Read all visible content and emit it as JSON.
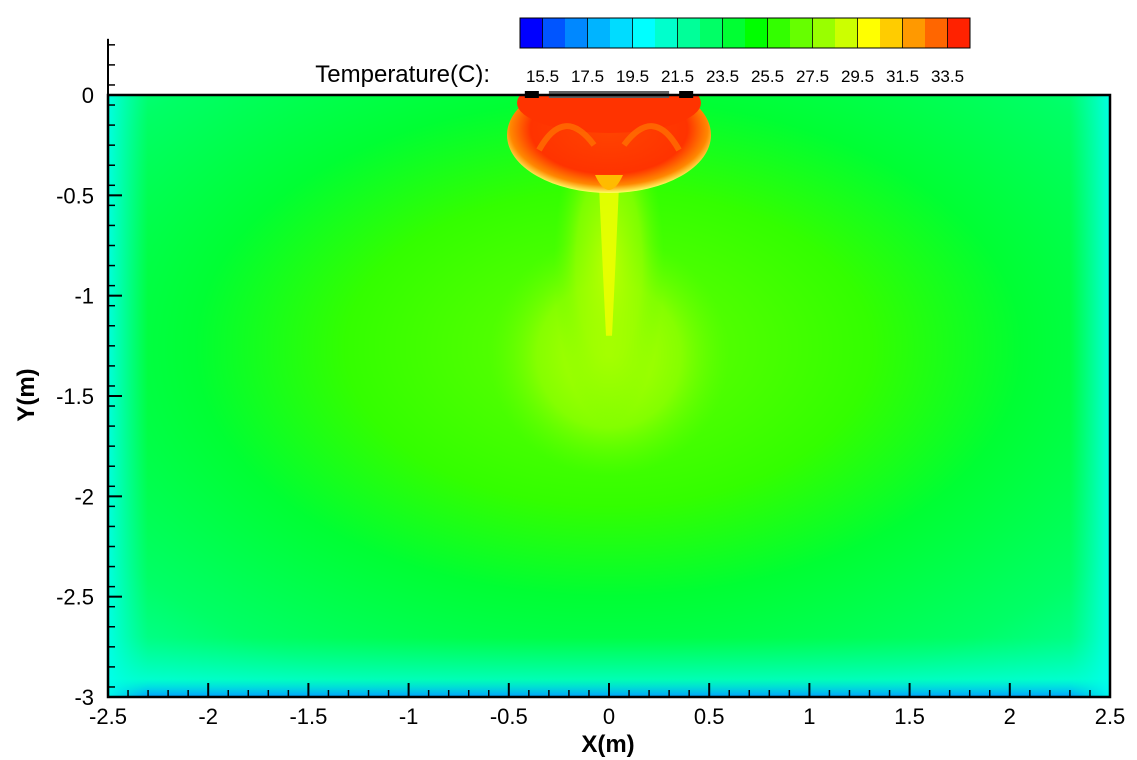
{
  "chart_data": {
    "type": "heatmap",
    "title": "",
    "xlabel": "X(m)",
    "ylabel": "Y(m)",
    "xlim": [
      -2.5,
      2.5
    ],
    "ylim": [
      -3,
      0
    ],
    "x_ticks": [
      -2.5,
      -2,
      -1.5,
      -1,
      -0.5,
      0,
      0.5,
      1,
      1.5,
      2,
      2.5
    ],
    "x_tick_labels": [
      "-2.5",
      "-2",
      "-1.5",
      "-1",
      "-0.5",
      "0",
      "0.5",
      "1",
      "1.5",
      "2",
      "2.5"
    ],
    "y_ticks": [
      0,
      -0.5,
      -1,
      -1.5,
      -2,
      -2.5,
      -3
    ],
    "y_tick_labels": [
      "0",
      "-0.5",
      "-1",
      "-1.5",
      "-2",
      "-2.5",
      "-3"
    ],
    "colorbar": {
      "label": "Temperature(C):",
      "min": 14.5,
      "max": 34.5,
      "levels": 20,
      "colors": [
        "#0000ff",
        "#0055ff",
        "#0088ff",
        "#00b4ff",
        "#00dcff",
        "#00ffff",
        "#00ffcc",
        "#00ff99",
        "#00ff66",
        "#00ff33",
        "#00ff00",
        "#33ff00",
        "#66ff00",
        "#99ff00",
        "#ccff00",
        "#ffff00",
        "#ffcc00",
        "#ff9900",
        "#ff6600",
        "#ff2200"
      ],
      "tick_values": [
        15.5,
        17.5,
        19.5,
        21.5,
        23.5,
        25.5,
        27.5,
        29.5,
        31.5,
        33.5
      ],
      "tick_labels": [
        "15.5",
        "17.5",
        "19.5",
        "21.5",
        "23.5",
        "25.5",
        "27.5",
        "29.5",
        "31.5",
        "33.5"
      ]
    },
    "field_description": {
      "background_temperature": 25.5,
      "hot_region_center": [
        0.0,
        -0.2
      ],
      "hot_region_temperature": 33.5,
      "plume_axis_x": 0.0,
      "boundary_temperature": 19.5
    },
    "surface_elements": [
      {
        "type": "heater",
        "x_start": -0.3,
        "x_end": 0.3,
        "y": 0.0,
        "color": "#606060"
      },
      {
        "type": "marker",
        "x_start": -0.42,
        "x_end": -0.35,
        "y": 0.0,
        "color": "#000000"
      },
      {
        "type": "marker",
        "x_start": 0.35,
        "x_end": 0.42,
        "y": 0.0,
        "color": "#000000"
      }
    ],
    "grid": false,
    "legend_position": "top-right"
  }
}
